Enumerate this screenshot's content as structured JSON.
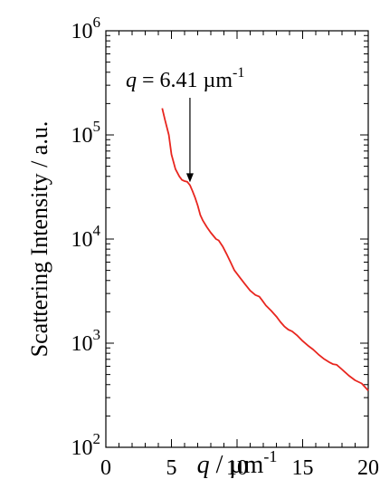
{
  "chart_data": {
    "type": "line",
    "title": "",
    "xlabel": {
      "var": "q",
      "sep": " / ",
      "unit": "µm",
      "exp": "-1"
    },
    "ylabel": "Scattering Intensity / a.u.",
    "xlim": [
      0,
      20
    ],
    "ylim": [
      100,
      1000000
    ],
    "yscale": "log",
    "x_ticks": [
      "0",
      "5",
      "10",
      "15",
      "20"
    ],
    "y_ticks": [
      {
        "base": "10",
        "exp": "2"
      },
      {
        "base": "10",
        "exp": "3"
      },
      {
        "base": "10",
        "exp": "4"
      },
      {
        "base": "10",
        "exp": "5"
      },
      {
        "base": "10",
        "exp": "6"
      }
    ],
    "series": [
      {
        "color": "#e8261f",
        "x": [
          4.3,
          4.5,
          4.8,
          5.0,
          5.3,
          5.6,
          5.8,
          6.0,
          6.2,
          6.41,
          6.6,
          6.8,
          7.0,
          7.2,
          7.4,
          7.7,
          8.0,
          8.4,
          8.6,
          8.9,
          9.2,
          9.5,
          9.8,
          10.2,
          10.6,
          11.0,
          11.4,
          11.7,
          11.9,
          12.2,
          12.6,
          13.0,
          13.3,
          13.6,
          13.9,
          14.2,
          14.6,
          15.0,
          15.4,
          15.8,
          16.2,
          16.6,
          17.0,
          17.3,
          17.6,
          18.0,
          18.5,
          19.0,
          19.5,
          20.0
        ],
        "y": [
          180000,
          140000,
          100000,
          65000,
          47000,
          40000,
          37000,
          36000,
          35500,
          33000,
          29000,
          25000,
          21000,
          17000,
          15000,
          13000,
          11500,
          10000,
          9700,
          8500,
          7200,
          6000,
          5000,
          4300,
          3700,
          3200,
          2900,
          2800,
          2600,
          2300,
          2050,
          1800,
          1600,
          1450,
          1350,
          1300,
          1180,
          1050,
          950,
          870,
          780,
          710,
          660,
          630,
          620,
          560,
          490,
          440,
          410,
          350
        ]
      }
    ],
    "annotation": {
      "var": "q",
      "text": " = 6.41 µm",
      "exp": "-1",
      "x": 6.41,
      "y": 33000
    },
    "grid": false
  }
}
